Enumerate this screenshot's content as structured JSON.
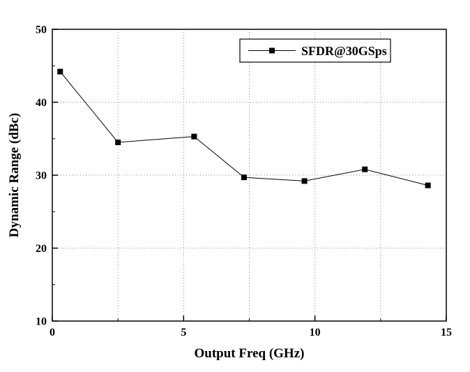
{
  "figure": {
    "background": "#ffffff",
    "frame_color": "#000000",
    "grid_color": "#8a8a8a"
  },
  "chart_data": {
    "type": "line",
    "title": "",
    "xlabel": "Output Freq (GHz)",
    "ylabel": "Dynamic Range (dBc)",
    "xlim": [
      0,
      15
    ],
    "ylim": [
      10,
      50
    ],
    "x_major_ticks": [
      0,
      5,
      10,
      15
    ],
    "x_major_tick_labels": [
      "0",
      "5",
      "10",
      "15"
    ],
    "x_minor_ticks": [
      2.5,
      7.5,
      12.5
    ],
    "y_major_ticks": [
      10,
      20,
      30,
      40,
      50
    ],
    "y_major_tick_labels": [
      "10",
      "20",
      "30",
      "40",
      "50"
    ],
    "y_minor_ticks": [
      15,
      25,
      35,
      45
    ],
    "grid_x": [
      2.5,
      5,
      7.5,
      10,
      12.5
    ],
    "grid_y": [
      20,
      30,
      40
    ],
    "grid_style": "dotted",
    "legend": {
      "label": "SFDR@30GSps",
      "position": "top-center",
      "marker": "square",
      "line_color": "#000000"
    },
    "series": [
      {
        "name": "SFDR@30GSps",
        "marker": "square",
        "color": "#000000",
        "x": [
          0.3,
          2.5,
          5.4,
          7.3,
          9.6,
          11.9,
          14.3
        ],
        "y": [
          44.2,
          34.5,
          35.3,
          29.7,
          29.2,
          30.8,
          28.6
        ]
      }
    ]
  }
}
